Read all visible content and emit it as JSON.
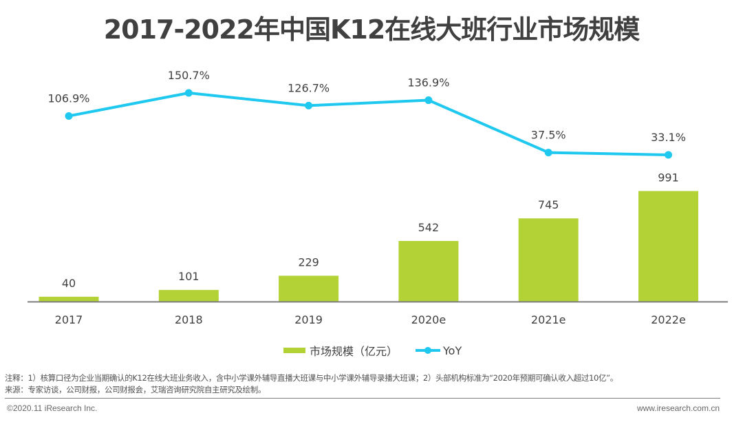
{
  "title": "2017-2022年中国K12在线大班行业市场规模",
  "chart_data": {
    "type": "bar",
    "title": "2017-2022年中国K12在线大班行业市场规模",
    "categories": [
      "2017",
      "2018",
      "2019",
      "2020e",
      "2021e",
      "2022e"
    ],
    "series": [
      {
        "name": "市场规模（亿元）",
        "type": "bar",
        "color": "#B2D235",
        "values": [
          40,
          101,
          229,
          542,
          745,
          991
        ],
        "labels": [
          "40",
          "101",
          "229",
          "542",
          "745",
          "991"
        ]
      },
      {
        "name": "YoY",
        "type": "line",
        "color": "#1EC8EE",
        "values": [
          106.9,
          150.7,
          126.7,
          136.9,
          37.5,
          33.1
        ],
        "labels": [
          "106.9%",
          "150.7%",
          "126.7%",
          "136.9%",
          "37.5%",
          "33.1%"
        ]
      }
    ],
    "xlabel": "",
    "ylabel": "",
    "grid": false,
    "legend_position": "bottom-center"
  },
  "legend": {
    "bar_label": "市场规模（亿元）",
    "line_label": "YoY"
  },
  "notes": {
    "note1": "注释：1）核算口径为企业当期确认的K12在线大班业务收入，含中小学课外辅导直播大班课与中小学课外辅导录播大班课；2）头部机构标准为“2020年预期可确认收入超过10亿”。",
    "note2": "来源：专家访谈，公司财报，公司财报会，艾瑞咨询研究院自主研究及绘制。"
  },
  "footer": {
    "copyright": "©2020.11 iResearch Inc.",
    "website": "www.iresearch.com.cn"
  }
}
